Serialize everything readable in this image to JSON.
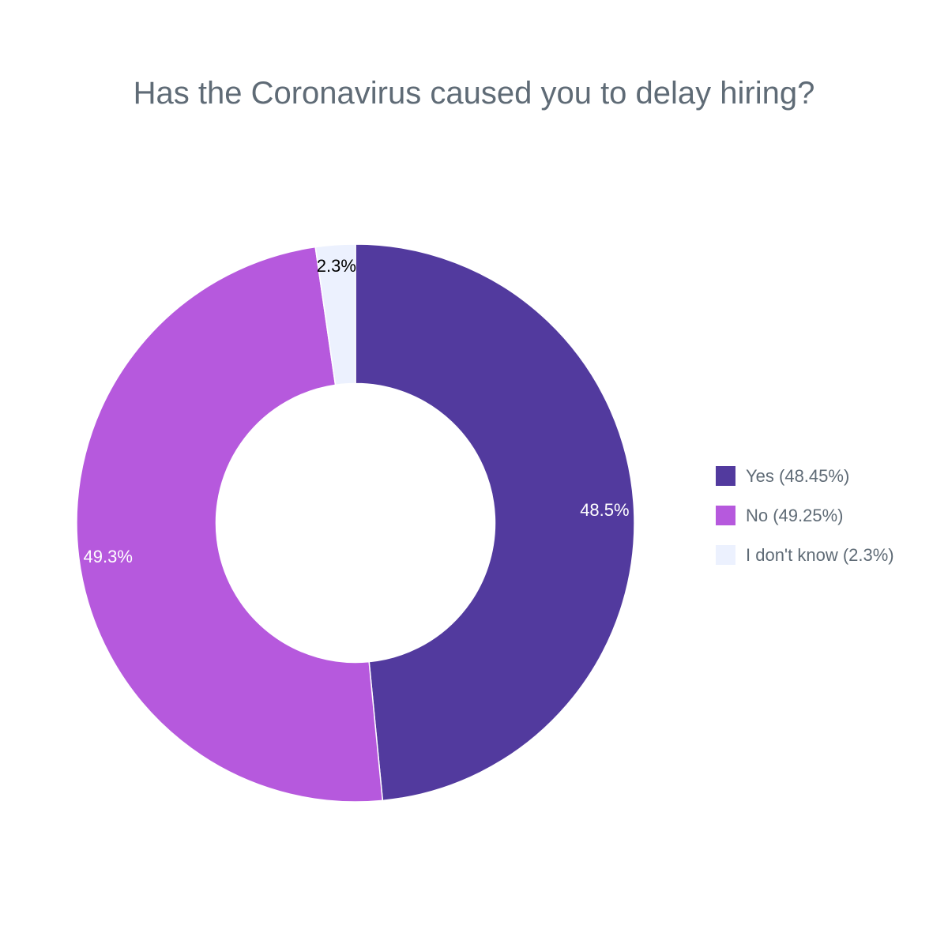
{
  "chart_data": {
    "type": "pie",
    "hole": 0.5,
    "title": "Has the Coronavirus caused you to delay hiring?",
    "direction": "clockwise",
    "start_angle": "top",
    "slices": [
      {
        "name": "Yes",
        "value": 48.45,
        "label": "48.5%",
        "legend": "Yes (48.45%)",
        "color": "#523a9e",
        "label_color": "#ffffff"
      },
      {
        "name": "No",
        "value": 49.25,
        "label": "49.3%",
        "legend": "No (49.25%)",
        "color": "#b659dd",
        "label_color": "#ffffff"
      },
      {
        "name": "I don't know",
        "value": 2.3,
        "label": "2.3%",
        "legend": "I don't know (2.3%)",
        "color": "#ecf1fe",
        "label_color": "#000000"
      }
    ],
    "legend_position": "right"
  }
}
